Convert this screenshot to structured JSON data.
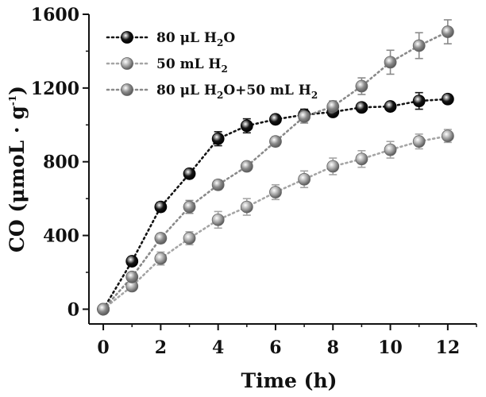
{
  "chart_data": {
    "type": "line",
    "title": "",
    "xlabel": "Time (h)",
    "ylabel": "CO (μmoL · g⁻¹)",
    "xlim": [
      -0.5,
      13.0
    ],
    "ylim": [
      -80,
      1600
    ],
    "xticks": [
      0,
      2,
      4,
      6,
      8,
      10,
      12
    ],
    "yticks": [
      0,
      400,
      800,
      1200,
      1600
    ],
    "series": [
      {
        "name": "80 μL H2O",
        "color": "#151515",
        "x": [
          0,
          1,
          2,
          3,
          4,
          5,
          6,
          7,
          8,
          9,
          10,
          11,
          12
        ],
        "y": [
          0,
          260,
          555,
          735,
          925,
          995,
          1030,
          1055,
          1070,
          1095,
          1100,
          1130,
          1140
        ],
        "err": [
          0,
          18,
          25,
          20,
          38,
          38,
          22,
          30,
          22,
          20,
          22,
          45,
          22
        ]
      },
      {
        "name": "50 mL H2",
        "color": "#a5a5a5",
        "x": [
          0,
          1,
          2,
          3,
          4,
          5,
          6,
          7,
          8,
          9,
          10,
          11,
          12
        ],
        "y": [
          0,
          125,
          275,
          385,
          485,
          555,
          635,
          705,
          775,
          815,
          865,
          910,
          940
        ],
        "err": [
          0,
          18,
          35,
          35,
          45,
          45,
          40,
          45,
          45,
          45,
          45,
          40,
          35
        ]
      },
      {
        "name": "80 μL H2O+50 mL H2",
        "color": "#8a8a8a",
        "x": [
          0,
          1,
          2,
          3,
          4,
          5,
          6,
          7,
          8,
          9,
          10,
          11,
          12
        ],
        "y": [
          0,
          175,
          385,
          555,
          675,
          775,
          910,
          1045,
          1100,
          1210,
          1340,
          1430,
          1505
        ],
        "err": [
          0,
          15,
          25,
          35,
          25,
          20,
          25,
          35,
          30,
          45,
          65,
          70,
          65
        ]
      }
    ],
    "legend": [
      {
        "base": "80 μL H",
        "sub1": "2",
        "mid": "O",
        "sub2": "",
        "tail": ""
      },
      {
        "base": "50 mL H",
        "sub1": "2",
        "mid": "",
        "sub2": "",
        "tail": ""
      },
      {
        "base": "80 μL H",
        "sub1": "2",
        "mid": "O+50 mL H",
        "sub2": "2",
        "tail": ""
      }
    ],
    "ylabel_parts": {
      "main": "CO (μmoL · g",
      "sup": "-1",
      "close": ")"
    },
    "legend_position": "top-left",
    "grid": false
  }
}
